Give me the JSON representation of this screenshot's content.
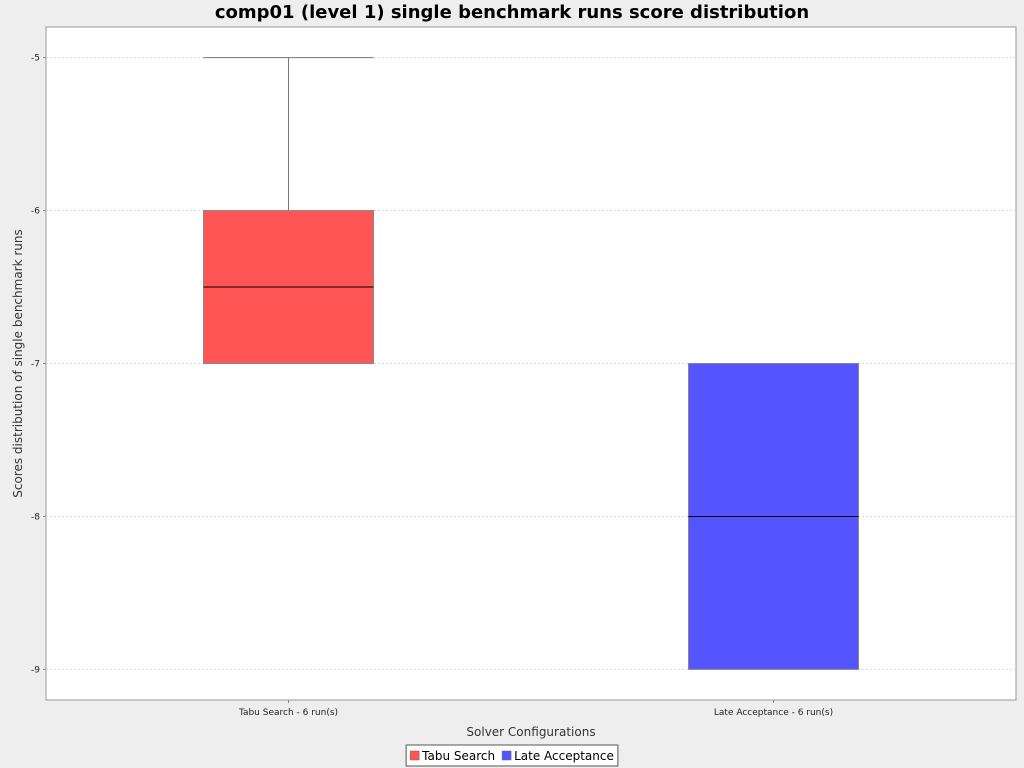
{
  "chart_data": {
    "type": "boxplot",
    "title": "comp01 (level 1) single benchmark runs score distribution",
    "xlabel": "Solver Configurations",
    "ylabel": "Scores distribution of single benchmark runs",
    "ylim": [
      -9.2,
      -4.8
    ],
    "yticks": [
      -5,
      -6,
      -7,
      -8,
      -9
    ],
    "grid": true,
    "legend_position": "bottom-center",
    "categories": [
      "Tabu Search - 6 run(s)",
      "Late Acceptance - 6 run(s)"
    ],
    "series": [
      {
        "name": "Tabu Search",
        "color": "#ff5555",
        "min": -7,
        "q1": -7,
        "median": -6.5,
        "q3": -6,
        "max": -5
      },
      {
        "name": "Late Acceptance",
        "color": "#5555ff",
        "min": -9,
        "q1": -9,
        "median": -8,
        "q3": -7,
        "max": -7
      }
    ]
  }
}
